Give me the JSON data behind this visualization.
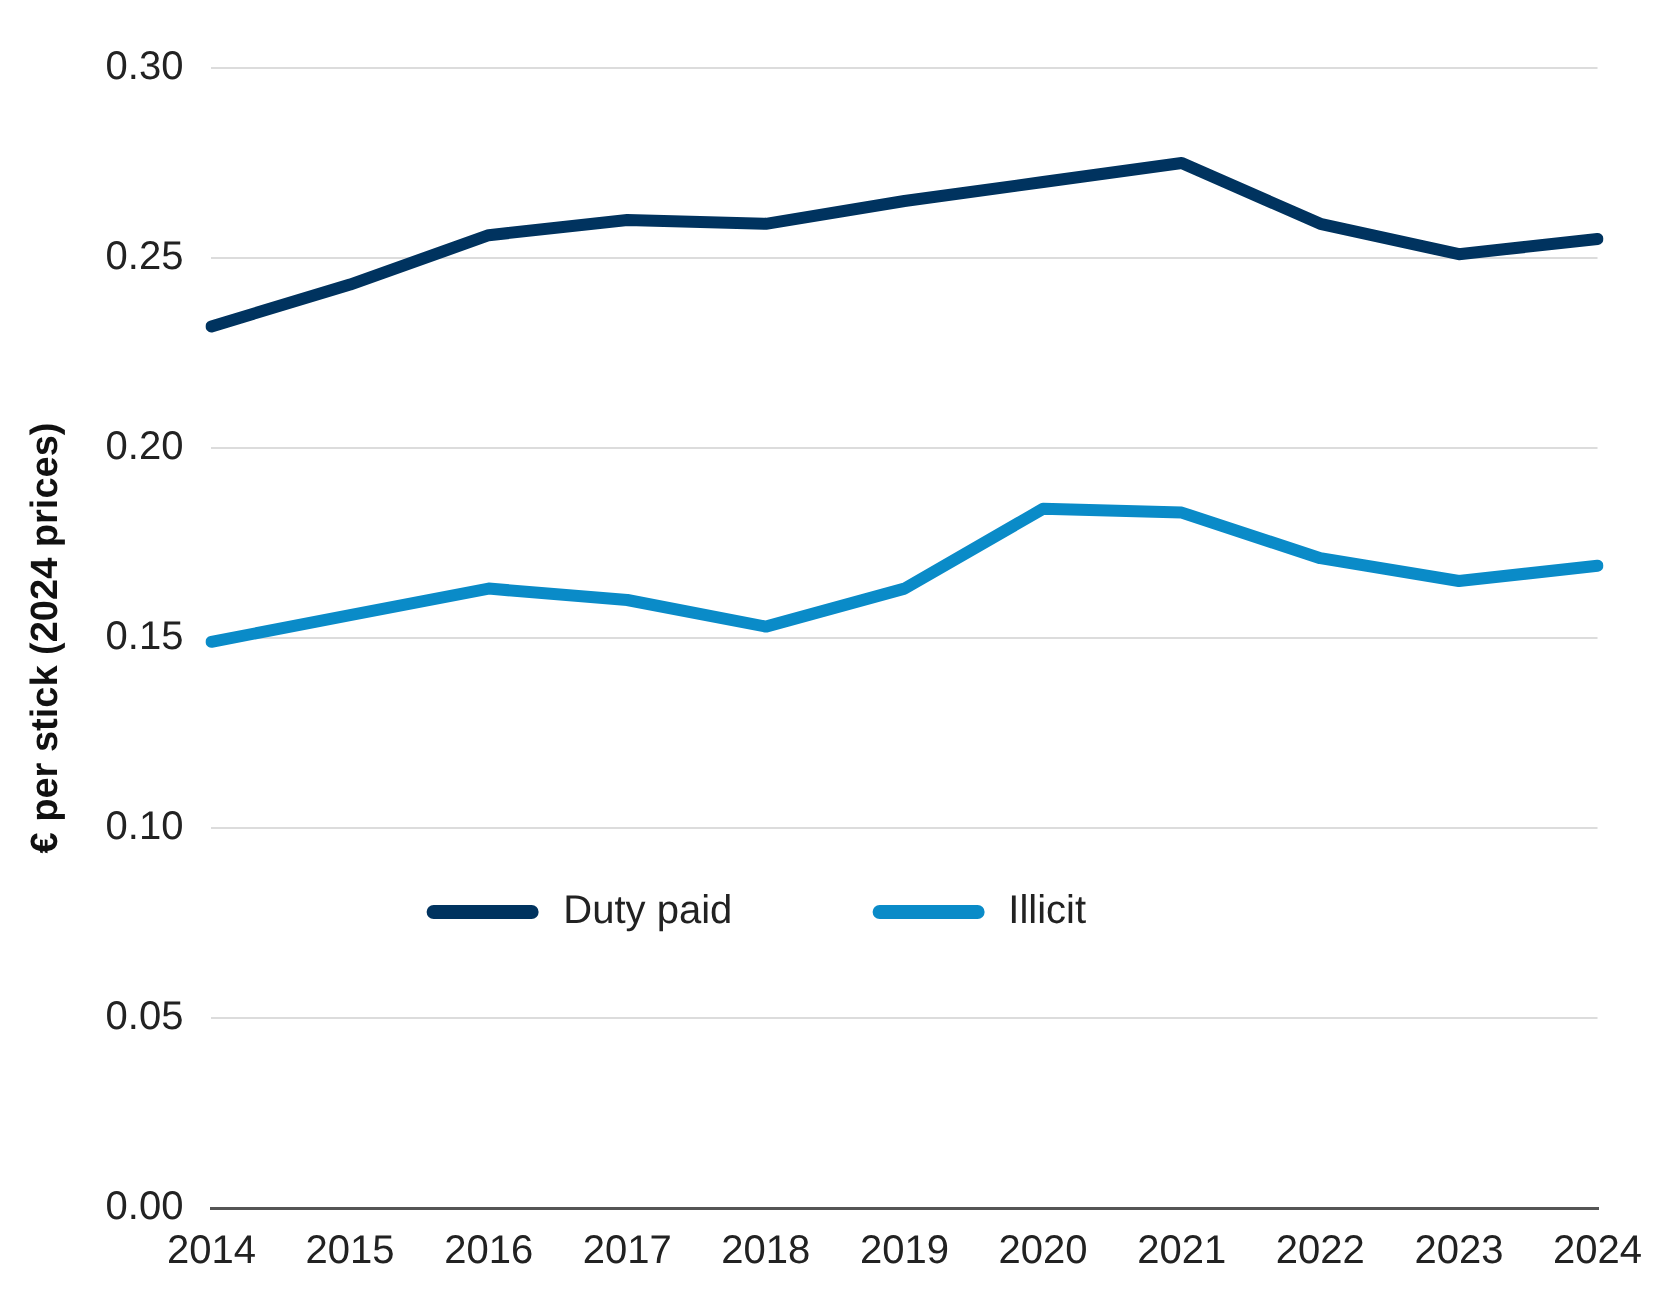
{
  "chart_data": {
    "type": "line",
    "ylabel": "€ per stick (2024 prices)",
    "categories": [
      "2014",
      "2015",
      "2016",
      "2017",
      "2018",
      "2019",
      "2020",
      "2021",
      "2022",
      "2023",
      "2024"
    ],
    "series": [
      {
        "name": "Duty paid",
        "color": "#00335f",
        "values": [
          0.232,
          0.243,
          0.256,
          0.26,
          0.259,
          0.265,
          0.27,
          0.275,
          0.259,
          0.251,
          0.255
        ]
      },
      {
        "name": "Illicit",
        "color": "#0a8bc8",
        "values": [
          0.149,
          0.156,
          0.163,
          0.16,
          0.153,
          0.163,
          0.184,
          0.183,
          0.171,
          0.165,
          0.169
        ]
      }
    ],
    "ylim": [
      0,
      0.3
    ],
    "yticks": [
      {
        "value": 0,
        "label": "0.00"
      },
      {
        "value": 0.05,
        "label": "0.05"
      },
      {
        "value": 0.1,
        "label": "0.10"
      },
      {
        "value": 0.15,
        "label": "0.15"
      },
      {
        "value": 0.2,
        "label": "0.20"
      },
      {
        "value": 0.25,
        "label": "0.25"
      },
      {
        "value": 0.3,
        "label": "0.30"
      }
    ],
    "grid": "y",
    "legend": "center",
    "marker": "none",
    "line_style": "solid"
  }
}
